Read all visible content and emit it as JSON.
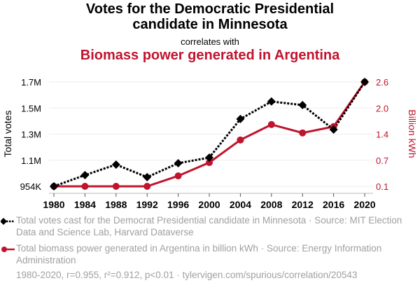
{
  "header": {
    "title_line1": "Votes for the Democratic Presidential",
    "title_line2": "candidate in Minnesota",
    "correlates": "correlates with",
    "title_secondary": "Biomass power generated in Argentina"
  },
  "colors": {
    "series1": "#000000",
    "series2": "#c0142e",
    "grid": "#eeeeee",
    "legend_text": "#a0a0a0"
  },
  "chart_data": {
    "type": "line",
    "x": [
      1980,
      1984,
      1988,
      1992,
      1996,
      2000,
      2004,
      2008,
      2012,
      2016,
      2020
    ],
    "x_tick_labels": [
      "1980",
      "1984",
      "1988",
      "1992",
      "1996",
      "2000",
      "2004",
      "2008",
      "2012",
      "2016",
      "2020"
    ],
    "y_left": {
      "label": "Total votes",
      "range": [
        954000,
        1717000
      ],
      "tick_labels": [
        "954K",
        "1.1M",
        "1.3M",
        "1.5M",
        "1.7M"
      ]
    },
    "y_right": {
      "label": "Billion kWh",
      "range": [
        0.1,
        2.6
      ],
      "tick_labels": [
        "0.1",
        "0.7",
        "1.4",
        "2.0",
        "2.6"
      ]
    },
    "grid": true,
    "legend_placement": "bottom",
    "series": [
      {
        "name": "Total votes cast for the Democrat Presidential candidate in Minnesota",
        "axis": "left",
        "style": "dotted-diamond",
        "values": [
          954000,
          1036000,
          1113000,
          1021000,
          1123000,
          1164000,
          1446000,
          1574000,
          1548000,
          1369000,
          1717000
        ]
      },
      {
        "name": "Total biomass power generated in Argentina in billion kWh",
        "axis": "right",
        "style": "solid-circle",
        "values": [
          0.1,
          0.1,
          0.1,
          0.1,
          0.35,
          0.67,
          1.21,
          1.58,
          1.38,
          1.53,
          2.6
        ]
      }
    ]
  },
  "legend": {
    "item1": "Total votes cast for the Democrat Presidential candidate in Minnesota · Source: MIT Election Data and Science Lab, Harvard Dataverse",
    "item2": "Total biomass power generated in Argentina in billion kWh · Source: Energy Information Administration"
  },
  "footer": "1980-2020, r=0.955, r²=0.912, p<0.01 · tylervigen.com/spurious/correlation/20543"
}
